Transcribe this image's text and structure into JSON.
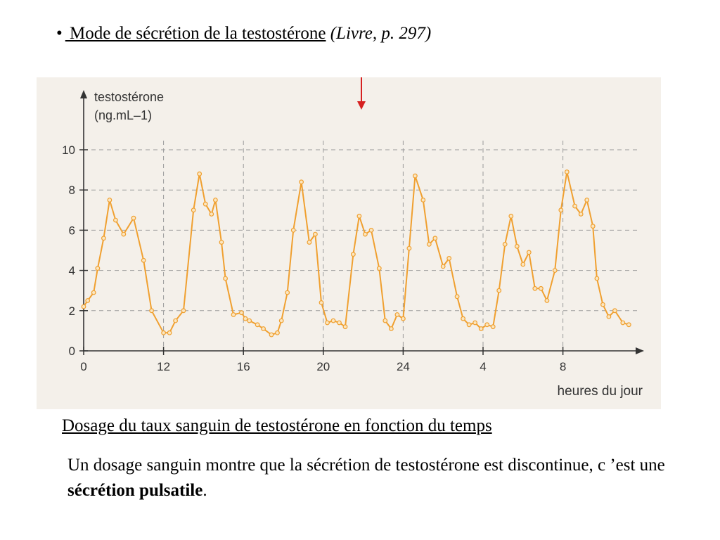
{
  "slide": {
    "bullet": "•",
    "heading": " Mode de sécrétion de la testostérone",
    "reference": "(Livre, p. 297)",
    "caption": "Dosage du taux sanguin de testostérone en fonction du temps",
    "text_before": "Un dosage sanguin montre que la sécrétion de testostérone est discontinue, c ’est une ",
    "text_bold": "sécrétion pulsatile",
    "text_after": "."
  },
  "colors": {
    "series": "#f0a030",
    "axis": "#333333",
    "grid": "#9a9a9a",
    "marker_arrow": "#d62020",
    "background": "#f4f0ea"
  },
  "chart_data": {
    "type": "line",
    "ylabel_line1": "testostérone",
    "ylabel_line2": "(ng.mL–1)",
    "xlabel": "heures du jour",
    "y_ticks": [
      0,
      2,
      4,
      6,
      8,
      10
    ],
    "x_ticks": [
      {
        "label": "0",
        "hour": 8
      },
      {
        "label": "12",
        "hour": 12
      },
      {
        "label": "16",
        "hour": 16
      },
      {
        "label": "20",
        "hour": 20
      },
      {
        "label": "24",
        "hour": 24
      },
      {
        "label": "4",
        "hour": 28
      },
      {
        "label": "8",
        "hour": 32
      }
    ],
    "xlim": [
      8,
      35.5
    ],
    "ylim": [
      0,
      10
    ],
    "grid": true,
    "series": [
      {
        "x": [
          8,
          8.2,
          8.5,
          8.7,
          9.0,
          9.3,
          9.6,
          10.0,
          10.5,
          11.0,
          11.4,
          12.0,
          12.3,
          12.6,
          13.0,
          13.5,
          13.8,
          14.1,
          14.4,
          14.6,
          14.9,
          15.1,
          15.5,
          15.9,
          16.1,
          16.3,
          16.7,
          17.0,
          17.4,
          17.7,
          17.9,
          18.2,
          18.5,
          18.9,
          19.3,
          19.6,
          19.9,
          20.2,
          20.5,
          20.8,
          21.1,
          21.5,
          21.8,
          22.1,
          22.4,
          22.8,
          23.1,
          23.4,
          23.7,
          24.0,
          24.3,
          24.6,
          25.0,
          25.3,
          25.6,
          26.0,
          26.3,
          26.7,
          27.0,
          27.3,
          27.6,
          27.9,
          28.2,
          28.5,
          28.8,
          29.1,
          29.4,
          29.7,
          30.0,
          30.3,
          30.6,
          30.9,
          31.2,
          31.6,
          31.9,
          32.2,
          32.6,
          32.9,
          33.2,
          33.5,
          33.7,
          34.0,
          34.3,
          34.6,
          35.0,
          35.3
        ],
        "y": [
          2.2,
          2.5,
          2.9,
          4.1,
          5.6,
          7.5,
          6.5,
          5.8,
          6.6,
          4.5,
          2.0,
          0.9,
          0.9,
          1.5,
          2.0,
          7.0,
          8.8,
          7.3,
          6.8,
          7.5,
          5.4,
          3.6,
          1.8,
          1.9,
          1.6,
          1.5,
          1.3,
          1.1,
          0.8,
          0.9,
          1.5,
          2.9,
          6.0,
          8.4,
          5.4,
          5.8,
          2.4,
          1.4,
          1.5,
          1.4,
          1.2,
          4.8,
          6.7,
          5.8,
          6.0,
          4.1,
          1.5,
          1.1,
          1.8,
          1.6,
          5.1,
          8.7,
          7.5,
          5.3,
          5.6,
          4.2,
          4.6,
          2.7,
          1.6,
          1.3,
          1.4,
          1.1,
          1.3,
          1.2,
          3.0,
          5.3,
          6.7,
          5.2,
          4.3,
          4.9,
          3.1,
          3.1,
          2.5,
          4.0,
          7.0,
          8.9,
          7.2,
          6.8,
          7.5,
          6.2,
          3.6,
          2.3,
          1.7,
          2.0,
          1.4,
          1.3
        ]
      }
    ]
  }
}
